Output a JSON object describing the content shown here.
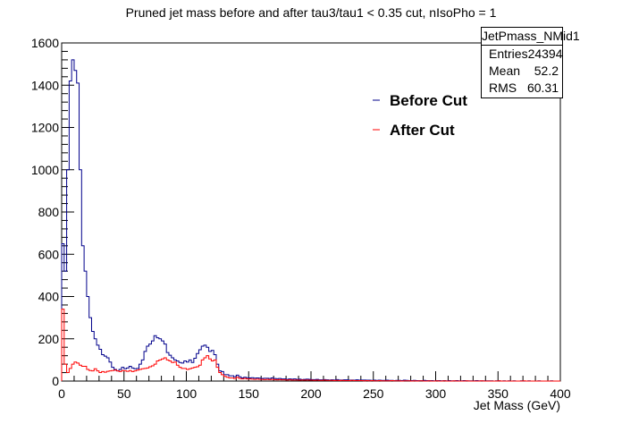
{
  "chart_data": {
    "type": "line",
    "title": "Pruned jet mass before and after tau3/tau1 < 0.35 cut, nIsoPho = 1",
    "xlabel": "Jet Mass (GeV)",
    "ylabel": "",
    "xlim": [
      0,
      400
    ],
    "ylim": [
      0,
      1600
    ],
    "x_ticks": [
      0,
      50,
      100,
      150,
      200,
      250,
      300,
      350,
      400
    ],
    "y_ticks": [
      0,
      200,
      400,
      600,
      800,
      1000,
      1200,
      1400,
      1600
    ],
    "bin_width": 2,
    "legend_position": "top-right",
    "series": [
      {
        "name": "Before Cut",
        "color": "#00008b",
        "values": [
          650,
          520,
          1000,
          1420,
          1520,
          1470,
          1410,
          1000,
          640,
          520,
          400,
          300,
          235,
          200,
          170,
          150,
          125,
          118,
          110,
          90,
          65,
          55,
          48,
          55,
          65,
          58,
          62,
          70,
          62,
          58,
          60,
          80,
          100,
          140,
          165,
          175,
          190,
          215,
          205,
          200,
          190,
          175,
          135,
          122,
          110,
          100,
          95,
          88,
          85,
          95,
          90,
          100,
          88,
          108,
          130,
          148,
          165,
          170,
          160,
          140,
          145,
          125,
          80,
          48,
          45,
          30,
          30,
          25,
          25,
          20,
          28,
          20,
          15,
          18,
          16,
          15,
          16,
          14,
          15,
          14,
          12,
          13,
          13,
          12,
          15,
          12,
          11,
          12,
          10,
          10,
          8,
          10,
          9,
          10,
          8,
          9,
          7,
          8,
          9,
          8,
          7,
          7,
          8,
          6,
          6,
          7,
          6,
          5,
          6,
          5,
          7,
          5,
          5,
          6,
          6,
          4,
          5,
          4,
          6,
          4,
          5,
          5,
          4,
          4,
          3,
          4,
          3,
          4,
          3,
          3,
          4,
          3,
          3,
          2,
          3,
          3,
          2,
          4,
          3,
          2,
          2,
          3,
          2,
          2,
          2,
          3,
          2,
          2,
          2,
          1,
          2,
          2,
          1,
          2,
          1,
          2,
          1,
          1,
          2,
          1,
          1,
          2,
          1,
          1,
          1,
          1,
          2,
          1,
          1,
          1,
          1,
          1,
          1,
          0,
          1,
          1,
          0,
          1,
          0,
          1,
          0,
          1,
          0,
          0,
          1,
          0,
          0,
          1,
          0,
          0,
          0,
          1,
          0,
          0,
          0,
          0,
          1,
          0,
          0,
          0
        ]
      },
      {
        "name": "After Cut",
        "color": "#ff0000",
        "values": [
          340,
          80,
          40,
          60,
          80,
          90,
          85,
          75,
          70,
          70,
          55,
          50,
          48,
          58,
          48,
          40,
          45,
          42,
          46,
          48,
          50,
          52,
          48,
          45,
          50,
          48,
          46,
          50,
          45,
          48,
          52,
          55,
          58,
          60,
          62,
          68,
          72,
          80,
          95,
          100,
          105,
          110,
          100,
          95,
          88,
          90,
          75,
          65,
          60,
          60,
          55,
          58,
          62,
          65,
          68,
          75,
          100,
          110,
          120,
          105,
          95,
          100,
          65,
          40,
          30,
          22,
          18,
          15,
          15,
          12,
          18,
          12,
          10,
          12,
          10,
          10,
          9,
          8,
          9,
          8,
          8,
          7,
          8,
          7,
          8,
          7,
          6,
          7,
          6,
          6,
          5,
          6,
          5,
          5,
          5,
          4,
          5,
          4,
          5,
          4,
          4,
          3,
          4,
          3,
          3,
          4,
          3,
          3,
          3,
          2,
          3,
          2,
          3,
          2,
          2,
          2,
          3,
          2,
          2,
          2,
          2,
          1,
          2,
          1,
          2,
          1,
          1,
          2,
          1,
          1,
          1,
          1,
          2,
          1,
          1,
          1,
          0,
          1,
          1,
          1,
          0,
          1,
          0,
          1,
          1,
          0,
          0,
          1,
          0,
          0,
          1,
          0,
          0,
          1,
          0,
          0,
          0,
          1,
          0,
          0,
          0,
          0,
          1,
          0,
          0,
          0,
          0,
          0,
          1,
          0,
          0,
          0,
          0,
          0,
          0,
          1,
          0,
          0,
          0,
          0,
          0,
          0,
          0,
          0,
          0,
          1,
          0,
          0,
          0,
          0,
          0,
          0,
          0,
          0,
          0,
          0,
          0,
          0,
          0,
          0
        ]
      }
    ]
  },
  "stats_box": {
    "title": "JetPmass_NMid1",
    "rows": [
      {
        "label": "Entries",
        "value": "24394"
      },
      {
        "label": "Mean",
        "value": "52.2"
      },
      {
        "label": "RMS",
        "value": "60.31"
      }
    ]
  }
}
